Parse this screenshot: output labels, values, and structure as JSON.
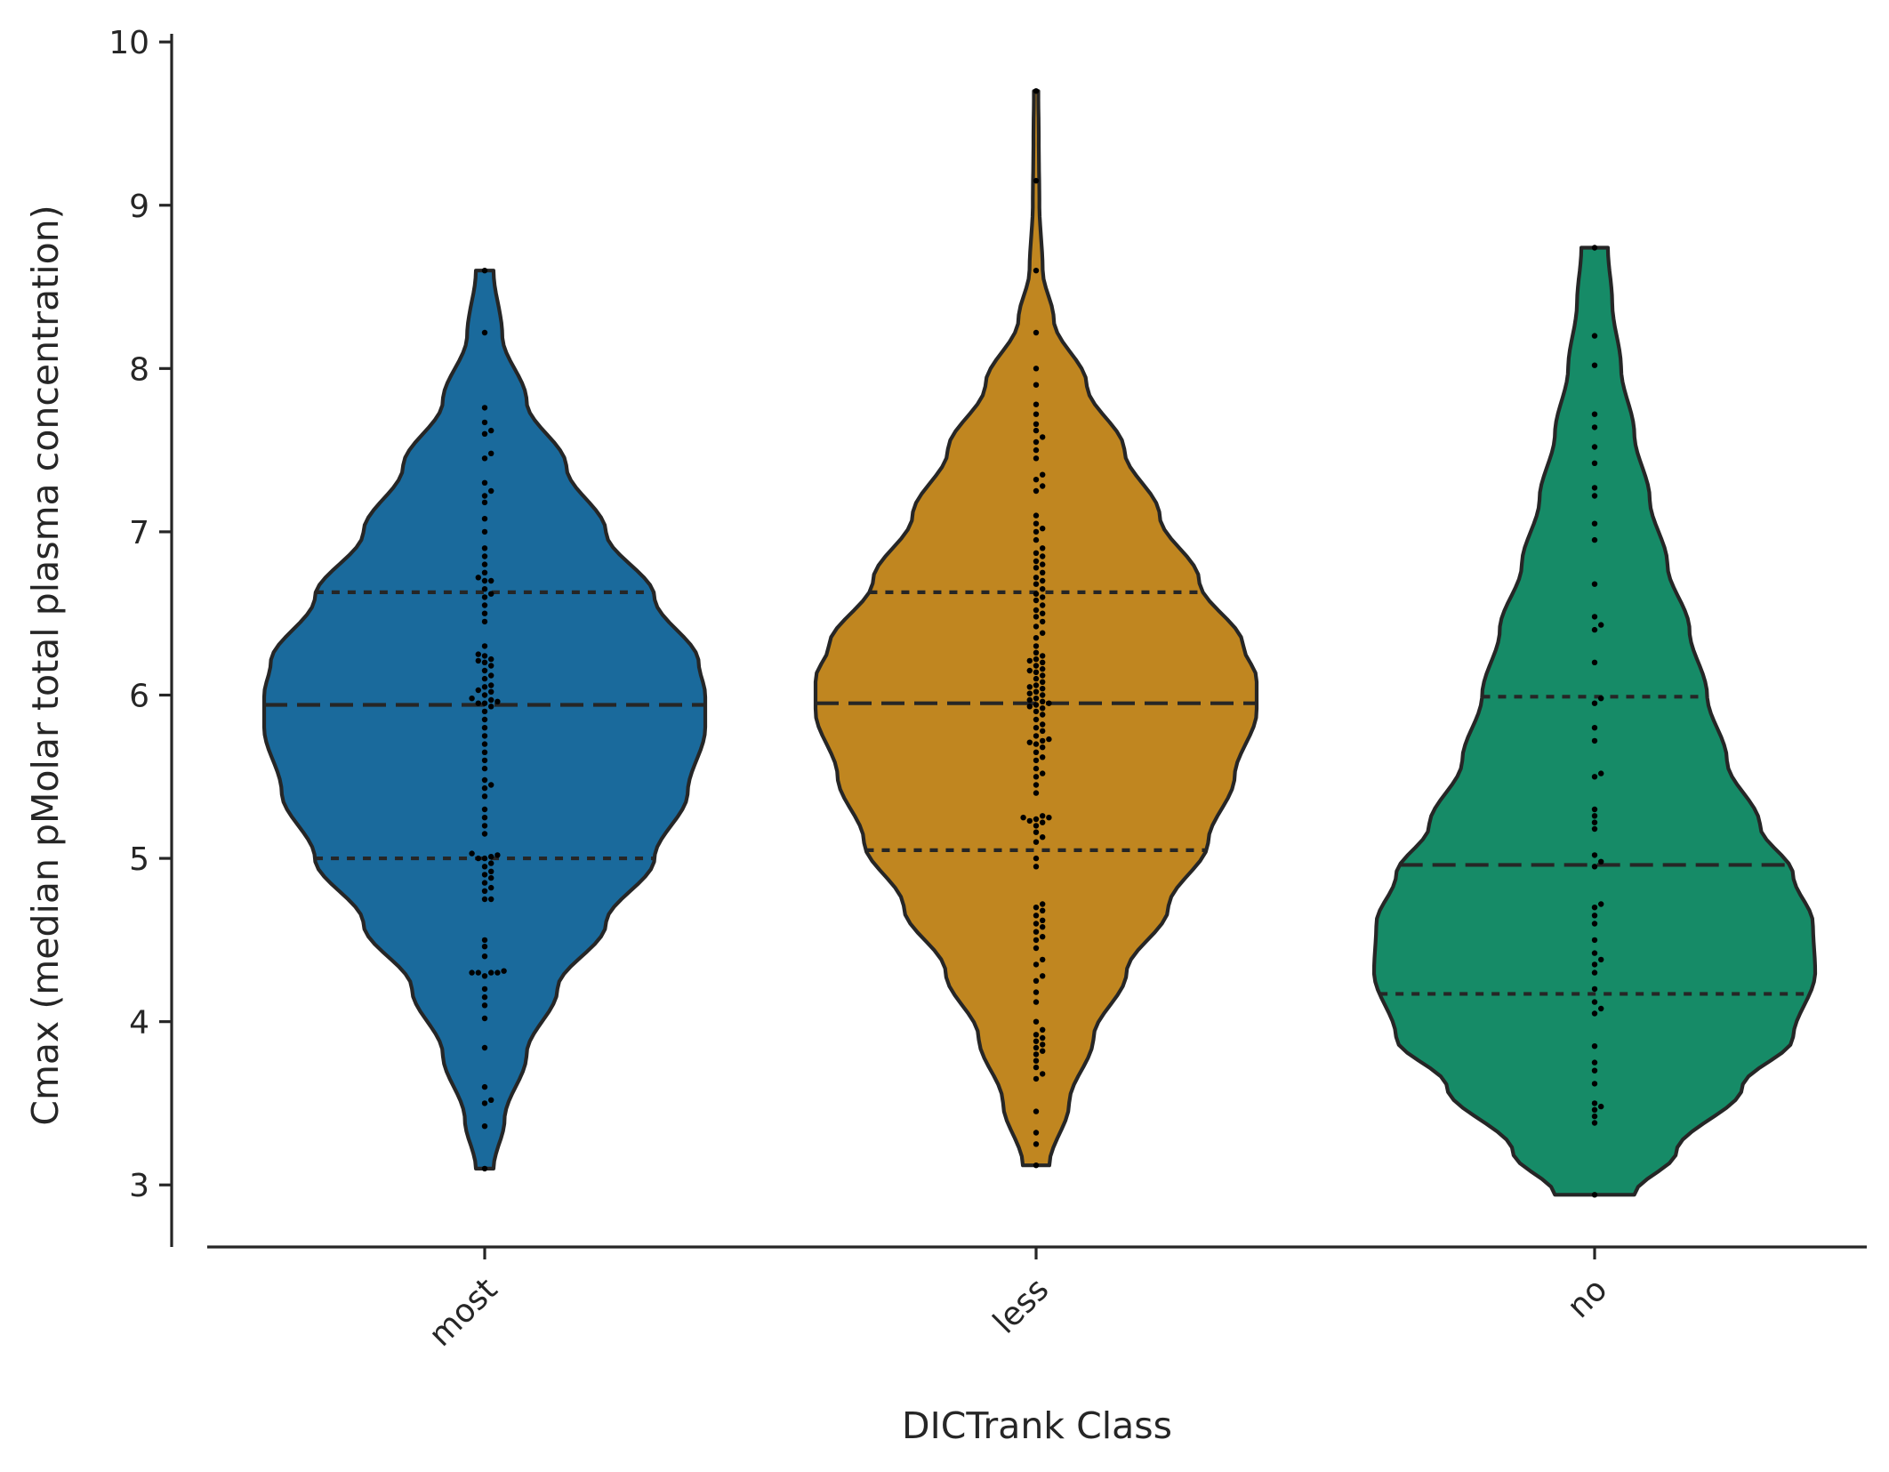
{
  "chart_data": {
    "type": "violin",
    "xlabel": "DICTrank Class",
    "ylabel": "Cmax (median pMolar total plasma concentration)",
    "ylim": [
      2.62,
      10.05
    ],
    "yticks": [
      3,
      4,
      5,
      6,
      7,
      8,
      9,
      10
    ],
    "legend": "none",
    "grid": false,
    "categories": [
      "most",
      "less",
      "no"
    ],
    "colors": [
      "#1a6a9c",
      "#c08620",
      "#168b67"
    ],
    "series": [
      {
        "category": "most",
        "min": 3.1,
        "max": 8.6,
        "q1": 5.0,
        "median": 5.94,
        "q3": 6.63,
        "profile": [
          [
            3.1,
            0.04
          ],
          [
            3.4,
            0.09
          ],
          [
            3.8,
            0.19
          ],
          [
            4.2,
            0.33
          ],
          [
            4.6,
            0.55
          ],
          [
            5.0,
            0.77
          ],
          [
            5.4,
            0.92
          ],
          [
            5.8,
            1.0
          ],
          [
            6.0,
            1.0
          ],
          [
            6.2,
            0.97
          ],
          [
            6.6,
            0.77
          ],
          [
            7.0,
            0.55
          ],
          [
            7.4,
            0.37
          ],
          [
            7.8,
            0.19
          ],
          [
            8.2,
            0.08
          ],
          [
            8.6,
            0.04
          ]
        ],
        "points": [
          3.1,
          3.36,
          3.5,
          3.52,
          3.6,
          3.84,
          4.02,
          4.1,
          4.15,
          4.2,
          4.28,
          4.3,
          4.3,
          4.3,
          4.3,
          4.31,
          4.4,
          4.46,
          4.5,
          4.75,
          4.75,
          4.8,
          4.82,
          4.85,
          4.88,
          4.9,
          4.92,
          4.95,
          4.97,
          5.0,
          5.0,
          5.01,
          5.02,
          5.03,
          5.15,
          5.2,
          5.25,
          5.3,
          5.38,
          5.43,
          5.45,
          5.48,
          5.55,
          5.6,
          5.65,
          5.7,
          5.75,
          5.8,
          5.85,
          5.9,
          5.93,
          5.95,
          5.95,
          5.96,
          5.97,
          5.98,
          6.0,
          6.02,
          6.03,
          6.05,
          6.06,
          6.1,
          6.12,
          6.15,
          6.18,
          6.2,
          6.21,
          6.22,
          6.24,
          6.25,
          6.3,
          6.45,
          6.5,
          6.55,
          6.6,
          6.62,
          6.65,
          6.7,
          6.7,
          6.72,
          6.75,
          6.8,
          6.85,
          6.9,
          7.0,
          7.08,
          7.18,
          7.22,
          7.25,
          7.3,
          7.45,
          7.48,
          7.6,
          7.62,
          7.67,
          7.76,
          8.22,
          8.6
        ]
      },
      {
        "category": "less",
        "min": 3.12,
        "max": 9.7,
        "q1": 5.05,
        "median": 5.95,
        "q3": 6.63,
        "profile": [
          [
            3.12,
            0.06
          ],
          [
            3.5,
            0.15
          ],
          [
            3.9,
            0.26
          ],
          [
            4.3,
            0.41
          ],
          [
            4.7,
            0.6
          ],
          [
            5.1,
            0.78
          ],
          [
            5.5,
            0.9
          ],
          [
            5.9,
            1.0
          ],
          [
            6.1,
            1.0
          ],
          [
            6.3,
            0.94
          ],
          [
            6.7,
            0.74
          ],
          [
            7.1,
            0.56
          ],
          [
            7.5,
            0.4
          ],
          [
            7.9,
            0.23
          ],
          [
            8.3,
            0.08
          ],
          [
            8.6,
            0.03
          ],
          [
            9.0,
            0.015
          ],
          [
            9.4,
            0.012
          ],
          [
            9.7,
            0.01
          ]
        ],
        "points": [
          3.12,
          3.25,
          3.32,
          3.45,
          3.65,
          3.68,
          3.72,
          3.76,
          3.8,
          3.82,
          3.84,
          3.86,
          3.88,
          3.9,
          3.92,
          3.95,
          4.0,
          4.12,
          4.18,
          4.25,
          4.28,
          4.35,
          4.38,
          4.45,
          4.5,
          4.52,
          4.55,
          4.58,
          4.6,
          4.62,
          4.65,
          4.68,
          4.7,
          4.72,
          4.95,
          5.0,
          5.1,
          5.13,
          5.16,
          5.2,
          5.22,
          5.23,
          5.24,
          5.25,
          5.25,
          5.26,
          5.4,
          5.45,
          5.5,
          5.52,
          5.55,
          5.6,
          5.62,
          5.65,
          5.68,
          5.7,
          5.71,
          5.72,
          5.73,
          5.75,
          5.78,
          5.8,
          5.82,
          5.85,
          5.88,
          5.9,
          5.92,
          5.93,
          5.94,
          5.95,
          5.96,
          5.97,
          5.98,
          6.0,
          6.01,
          6.02,
          6.04,
          6.05,
          6.06,
          6.08,
          6.1,
          6.12,
          6.14,
          6.15,
          6.16,
          6.18,
          6.2,
          6.21,
          6.22,
          6.24,
          6.26,
          6.3,
          6.35,
          6.38,
          6.42,
          6.45,
          6.48,
          6.5,
          6.52,
          6.55,
          6.58,
          6.6,
          6.62,
          6.65,
          6.68,
          6.7,
          6.72,
          6.75,
          6.78,
          6.8,
          6.82,
          6.85,
          6.87,
          6.9,
          6.95,
          7.0,
          7.02,
          7.05,
          7.1,
          7.25,
          7.28,
          7.32,
          7.35,
          7.45,
          7.5,
          7.55,
          7.58,
          7.62,
          7.66,
          7.72,
          7.78,
          7.9,
          8.0,
          8.22,
          8.6,
          9.15,
          9.7
        ]
      },
      {
        "category": "no",
        "min": 2.94,
        "max": 8.74,
        "q1": 4.17,
        "median": 4.96,
        "q3": 5.99,
        "profile": [
          [
            2.94,
            0.18
          ],
          [
            3.2,
            0.37
          ],
          [
            3.6,
            0.67
          ],
          [
            3.9,
            0.9
          ],
          [
            4.3,
            1.0
          ],
          [
            4.6,
            0.99
          ],
          [
            4.9,
            0.9
          ],
          [
            5.2,
            0.75
          ],
          [
            5.6,
            0.6
          ],
          [
            6.0,
            0.51
          ],
          [
            6.4,
            0.43
          ],
          [
            6.8,
            0.33
          ],
          [
            7.2,
            0.25
          ],
          [
            7.6,
            0.18
          ],
          [
            8.0,
            0.12
          ],
          [
            8.4,
            0.08
          ],
          [
            8.74,
            0.06
          ]
        ],
        "points": [
          2.94,
          3.38,
          3.42,
          3.46,
          3.48,
          3.5,
          3.62,
          3.7,
          3.75,
          3.85,
          4.05,
          4.08,
          4.12,
          4.2,
          4.3,
          4.35,
          4.38,
          4.42,
          4.5,
          4.6,
          4.65,
          4.7,
          4.72,
          4.95,
          4.98,
          5.02,
          5.18,
          5.22,
          5.26,
          5.3,
          5.5,
          5.52,
          5.72,
          5.8,
          5.95,
          5.98,
          6.2,
          6.4,
          6.43,
          6.48,
          6.68,
          6.95,
          7.05,
          7.22,
          7.27,
          7.42,
          7.52,
          7.64,
          7.72,
          8.02,
          8.2,
          8.74
        ]
      }
    ]
  }
}
